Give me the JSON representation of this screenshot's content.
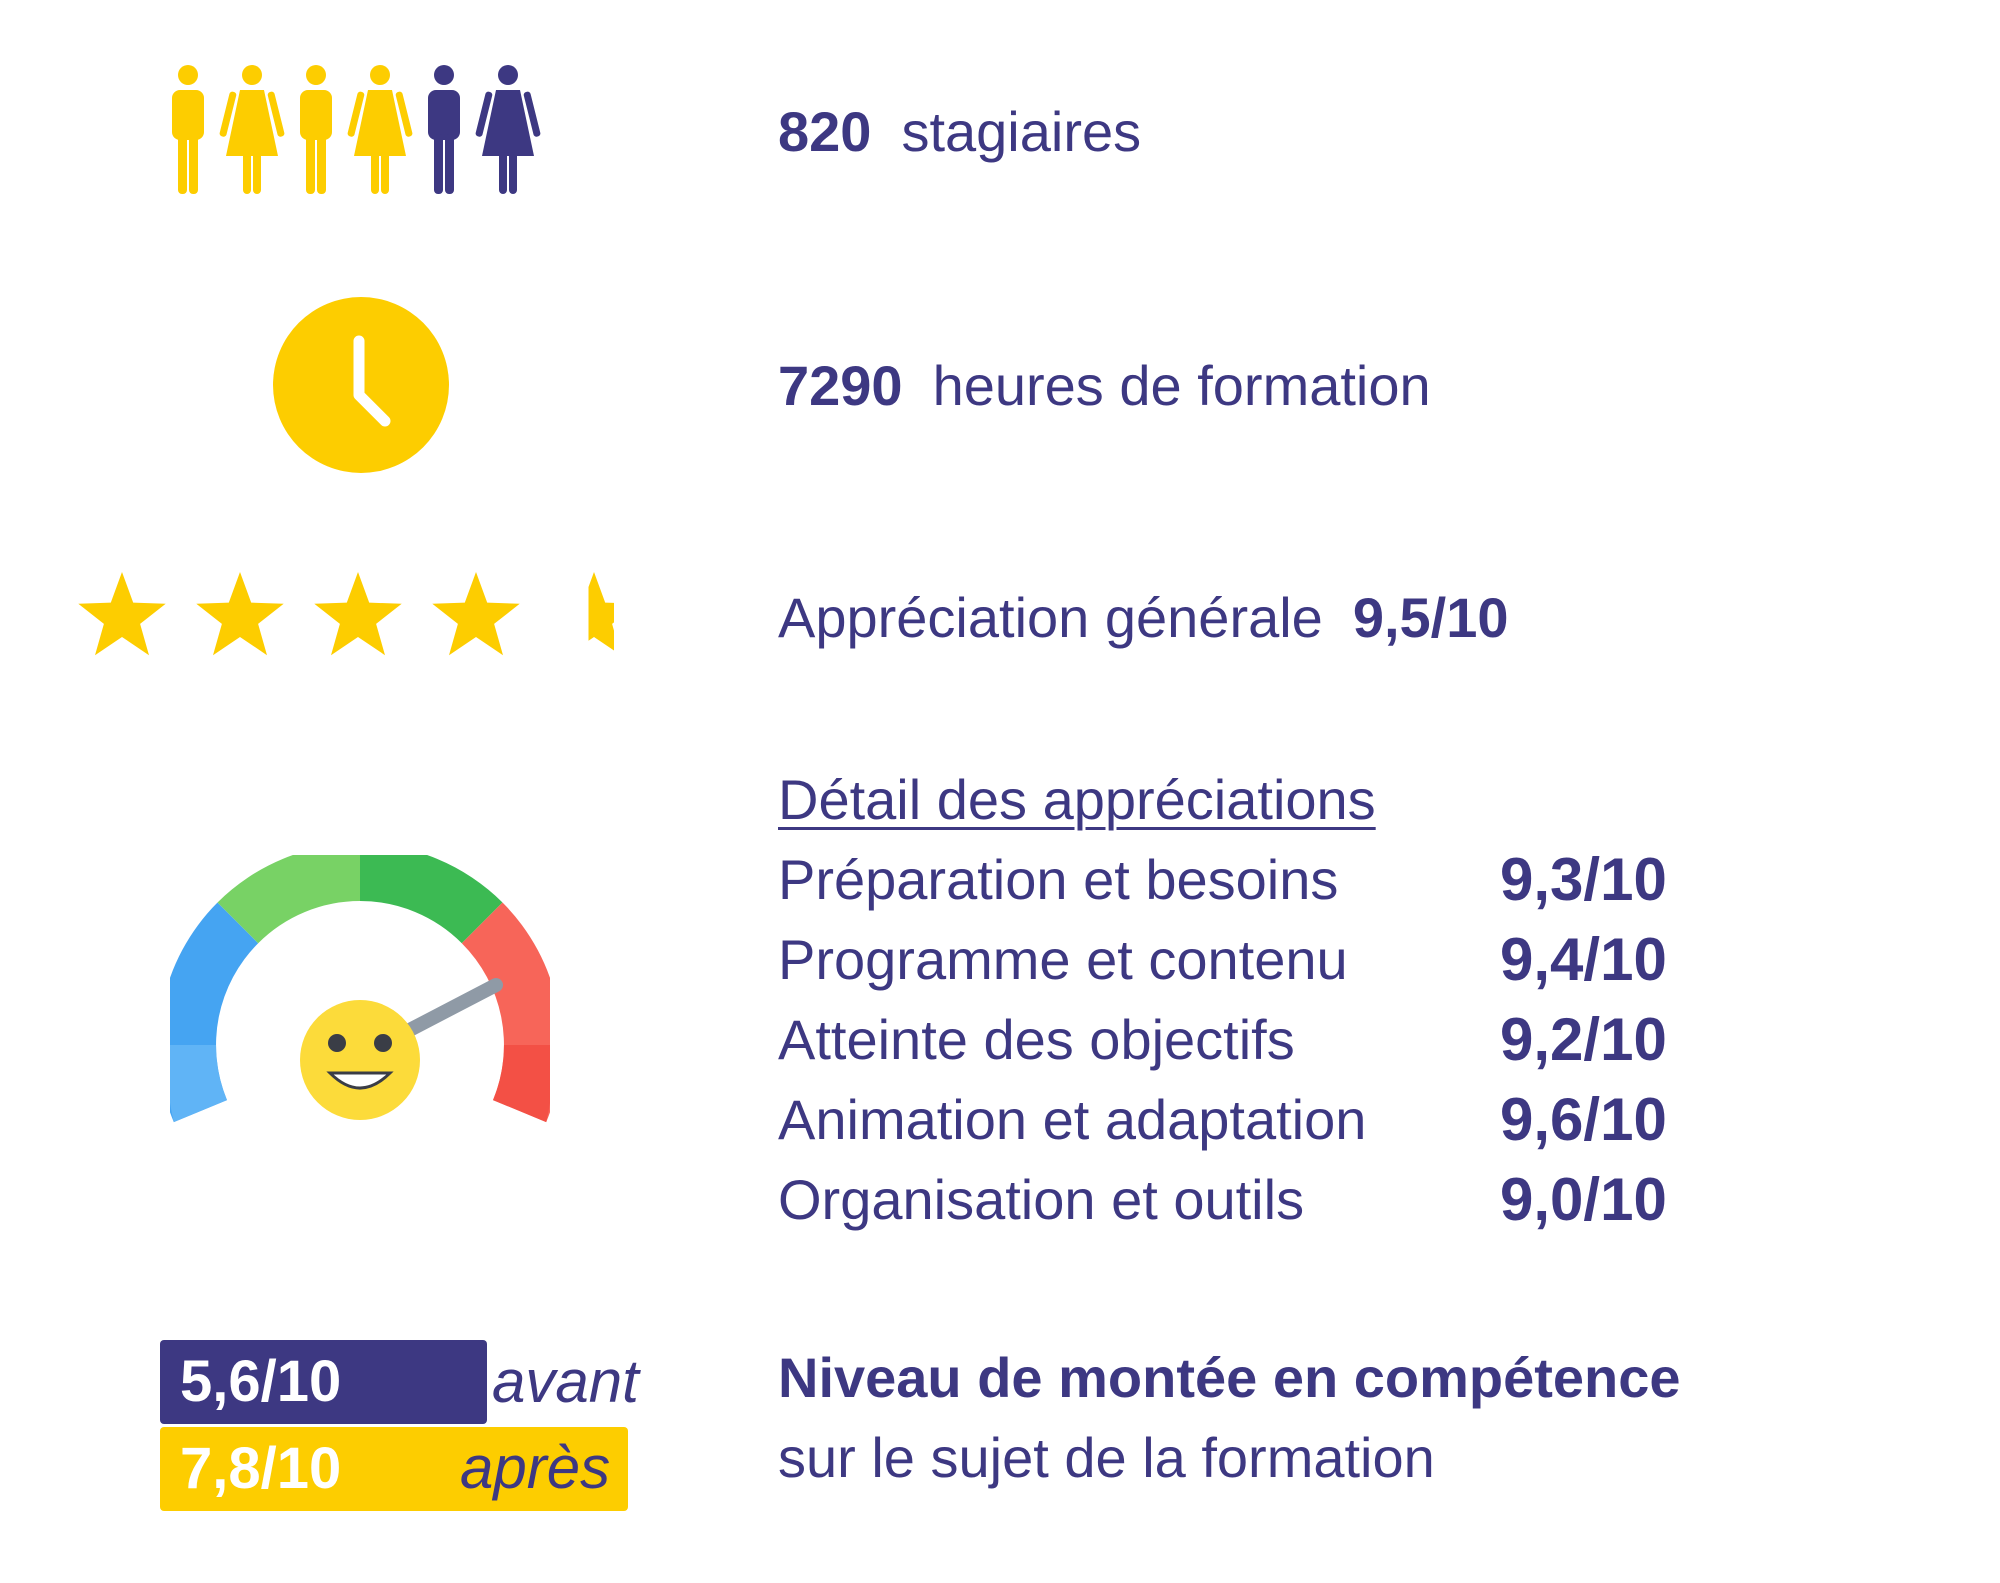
{
  "colors": {
    "navy": "#3d3882",
    "yellow": "#fdcd00",
    "white": "#ffffff"
  },
  "icons": {
    "people": "people-icon",
    "clock": "clock-icon",
    "stars": "rating-stars-icon",
    "gauge": "satisfaction-gauge-icon"
  },
  "trainees": {
    "count": "820",
    "label": "stagiaires"
  },
  "hours": {
    "count": "7290",
    "label": "heures de formation"
  },
  "overall": {
    "label": "Appréciation générale",
    "score": "9,5/10",
    "stars_value": 4.5,
    "stars_max": 5
  },
  "details": {
    "title": "Détail des appréciations",
    "items": [
      {
        "label": "Préparation et besoins",
        "score": "9,3/10"
      },
      {
        "label": "Programme et contenu",
        "score": "9,4/10"
      },
      {
        "label": "Atteinte des objectifs",
        "score": "9,2/10"
      },
      {
        "label": "Animation et adaptation",
        "score": "9,6/10"
      },
      {
        "label": "Organisation et outils",
        "score": "9,0/10"
      }
    ]
  },
  "skills": {
    "before_score": "5,6/10",
    "before_label": "avant",
    "before_value": 5.6,
    "after_score": "7,8/10",
    "after_label": "après",
    "after_value": 7.8,
    "title": "Niveau de montée en compétence",
    "subtitle": "sur le sujet de la formation"
  }
}
